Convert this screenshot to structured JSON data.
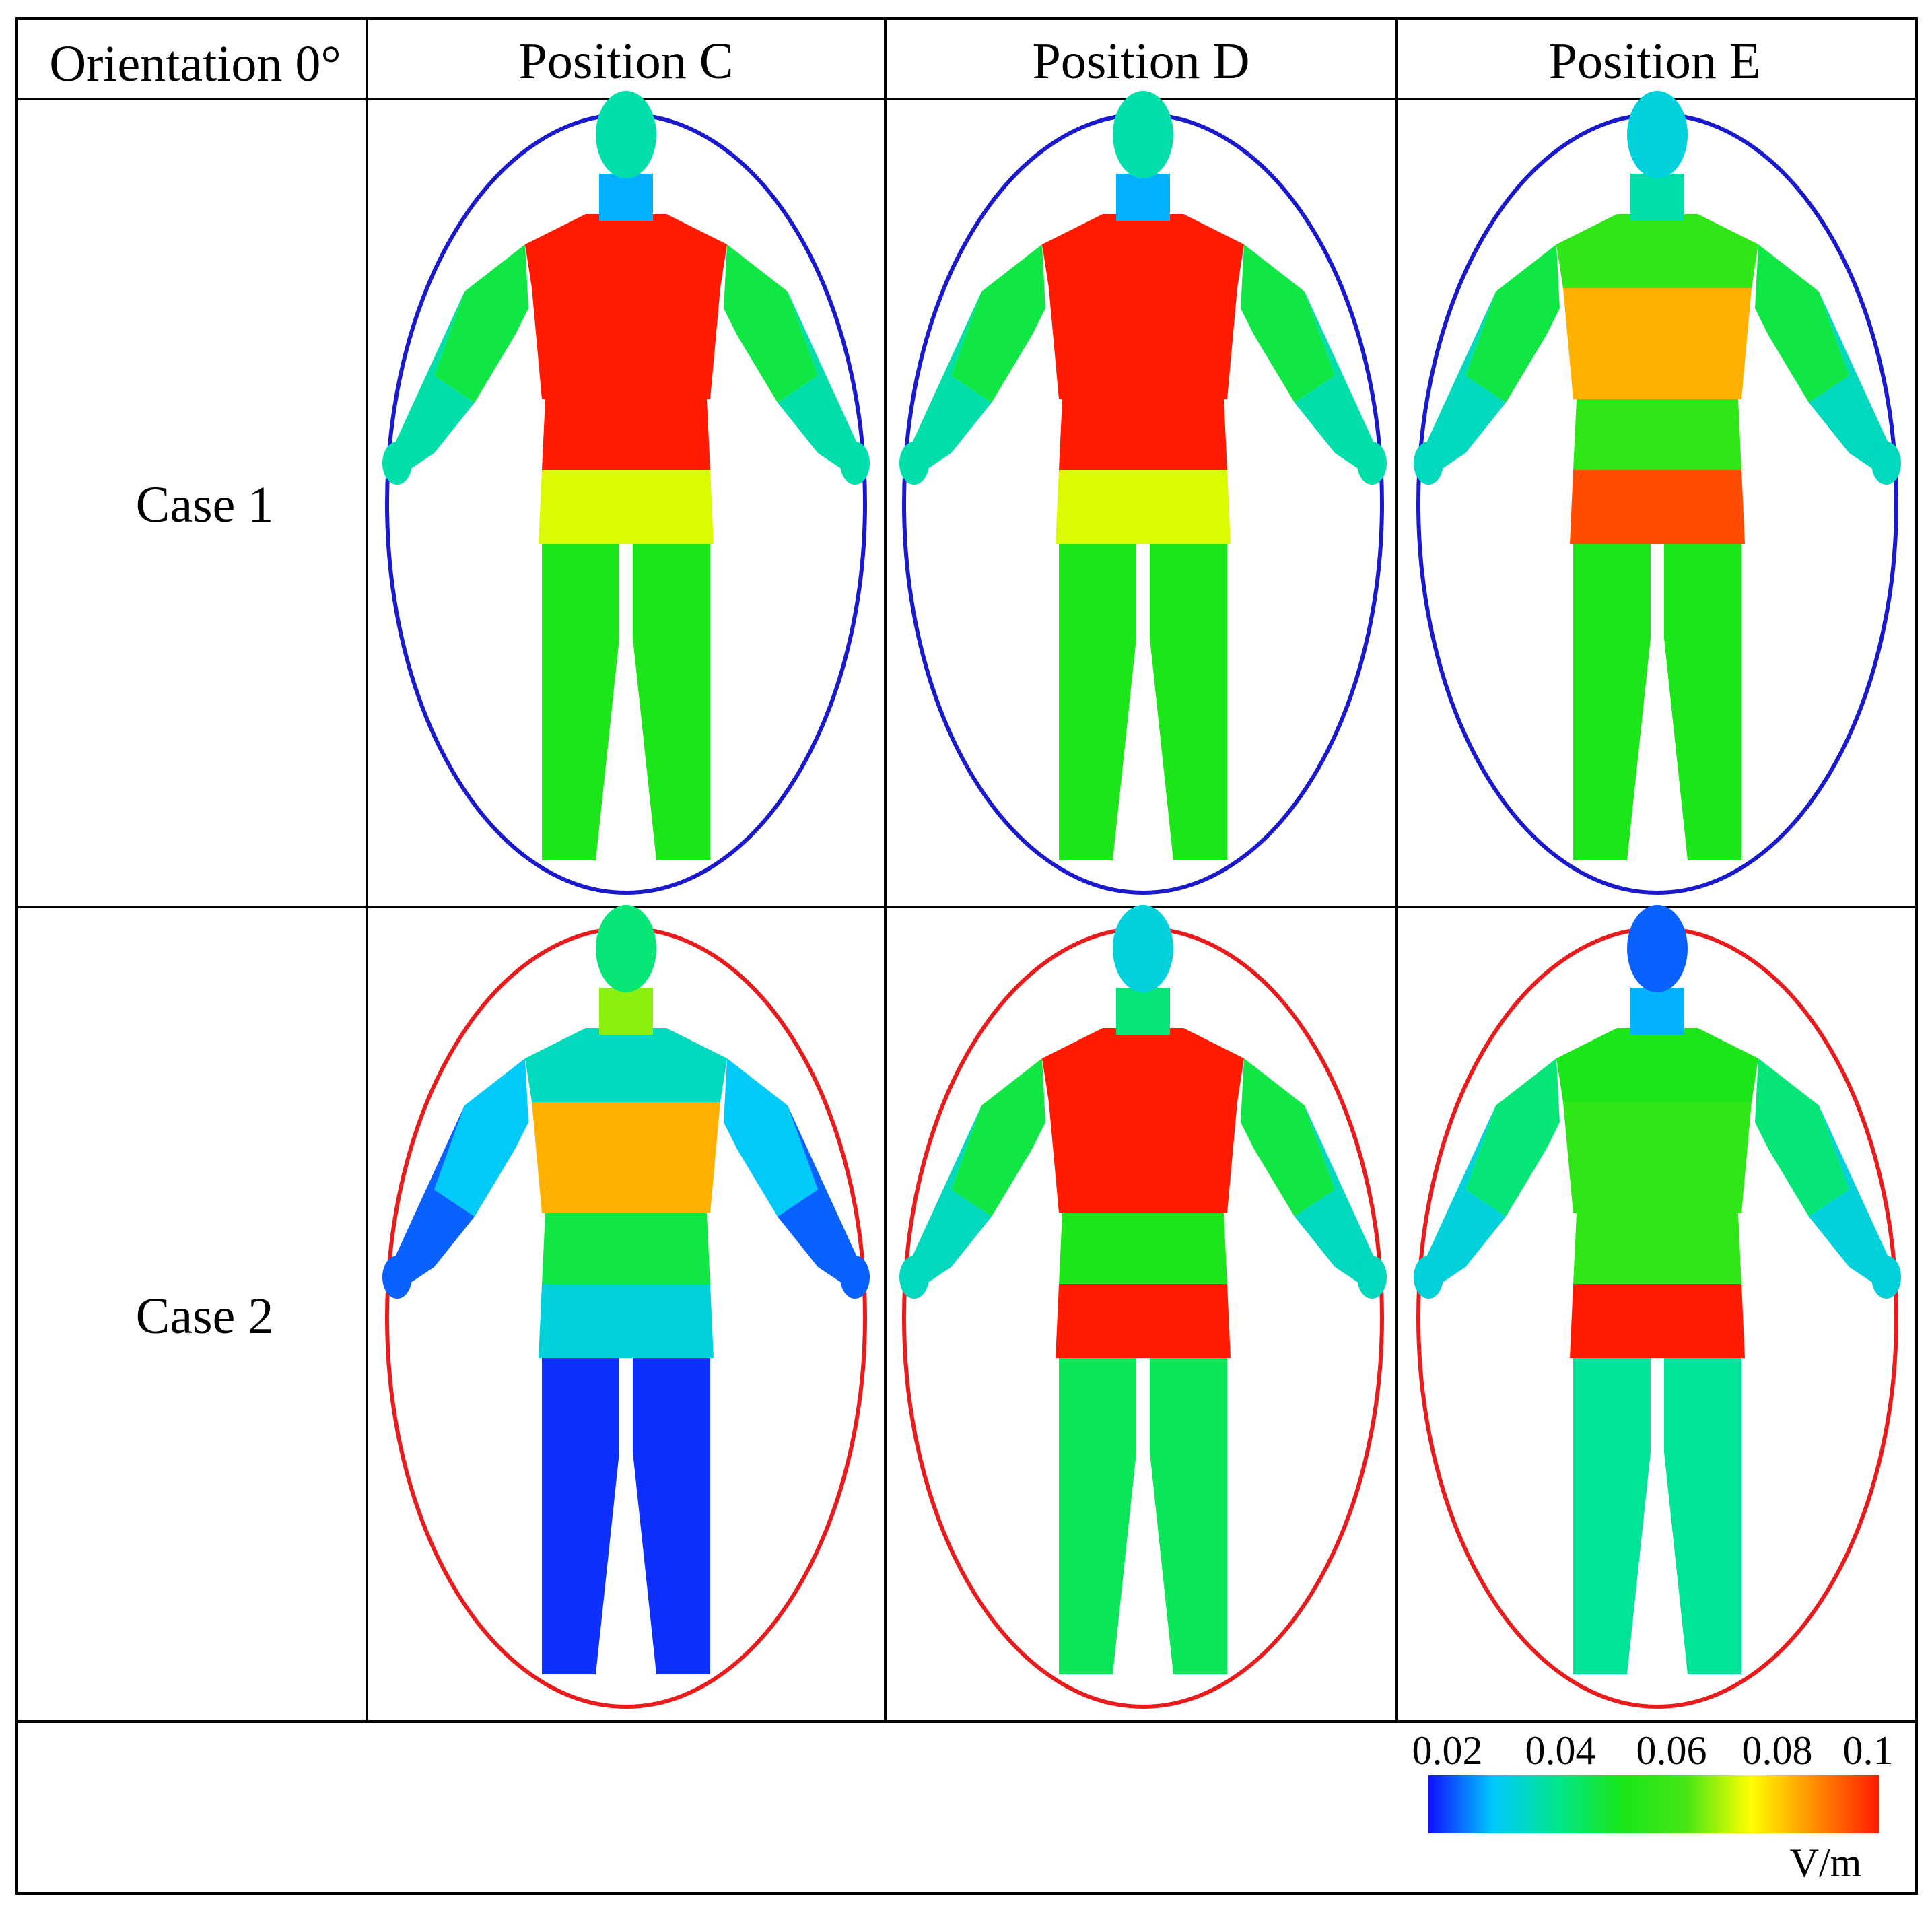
{
  "header": {
    "corner": "Orientation 0°",
    "columns": [
      "Position C",
      "Position D",
      "Position E"
    ]
  },
  "rows": [
    {
      "label": "Case 1",
      "ellipse_color": "#1a1acc"
    },
    {
      "label": "Case 2",
      "ellipse_color": "#e81c1c"
    }
  ],
  "figures": [
    {
      "row": 0,
      "col": 0,
      "zones": {
        "head": 0.04,
        "neck": 0.03,
        "shoulders": 0.1,
        "chest": 0.1,
        "waist": 0.1,
        "hips": 0.075,
        "legs": 0.055,
        "arms_upper": 0.05,
        "arms_lower": 0.04
      }
    },
    {
      "row": 0,
      "col": 1,
      "zones": {
        "head": 0.04,
        "neck": 0.03,
        "shoulders": 0.1,
        "chest": 0.1,
        "waist": 0.1,
        "hips": 0.075,
        "legs": 0.055,
        "arms_upper": 0.05,
        "arms_lower": 0.04
      }
    },
    {
      "row": 0,
      "col": 2,
      "zones": {
        "head": 0.035,
        "neck": 0.04,
        "shoulders": 0.06,
        "chest": 0.085,
        "waist": 0.06,
        "hips": 0.095,
        "legs": 0.055,
        "arms_upper": 0.05,
        "arms_lower": 0.038
      }
    },
    {
      "row": 1,
      "col": 0,
      "zones": {
        "head": 0.045,
        "neck": 0.07,
        "shoulders": 0.038,
        "chest": 0.085,
        "waist": 0.05,
        "hips": 0.035,
        "legs": 0.022,
        "arms_upper": 0.032,
        "arms_lower": 0.025
      }
    },
    {
      "row": 1,
      "col": 1,
      "zones": {
        "head": 0.035,
        "neck": 0.045,
        "shoulders": 0.1,
        "chest": 0.1,
        "waist": 0.055,
        "hips": 0.1,
        "legs": 0.048,
        "arms_upper": 0.05,
        "arms_lower": 0.038
      }
    },
    {
      "row": 1,
      "col": 2,
      "zones": {
        "head": 0.025,
        "neck": 0.03,
        "shoulders": 0.055,
        "chest": 0.06,
        "waist": 0.06,
        "hips": 0.1,
        "legs": 0.042,
        "arms_upper": 0.045,
        "arms_lower": 0.035
      }
    }
  ],
  "colorbar": {
    "ticks": [
      "0.02",
      "0.04",
      "0.06",
      "0.08",
      "0.1"
    ],
    "min": 0.02,
    "max": 0.1,
    "unit": "V/m",
    "stops": [
      "#1010ff",
      "#00c8ff",
      "#00e68c",
      "#19e619",
      "#46e614",
      "#ffff00",
      "#ff8c00",
      "#ff1a00"
    ]
  }
}
